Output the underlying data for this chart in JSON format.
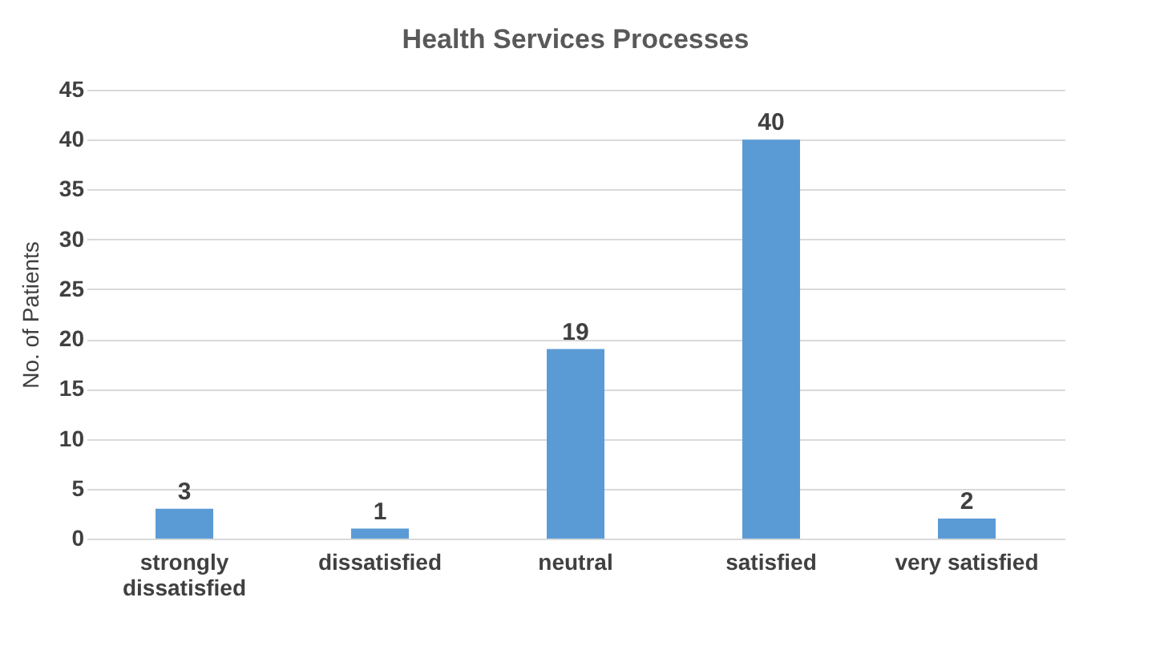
{
  "chart_data": {
    "type": "bar",
    "title": "Health Services Processes",
    "ylabel": "No. of Patients",
    "categories": [
      "strongly dissatisfied",
      "dissatisfied",
      "neutral",
      "satisfied",
      "very satisfied"
    ],
    "values": [
      3,
      1,
      19,
      40,
      2
    ],
    "color": "#5b9bd5",
    "ylim": [
      0,
      45
    ],
    "yticks": [
      0,
      5,
      10,
      15,
      20,
      25,
      30,
      35,
      40,
      45
    ],
    "grid": "y",
    "data_labels": true
  }
}
